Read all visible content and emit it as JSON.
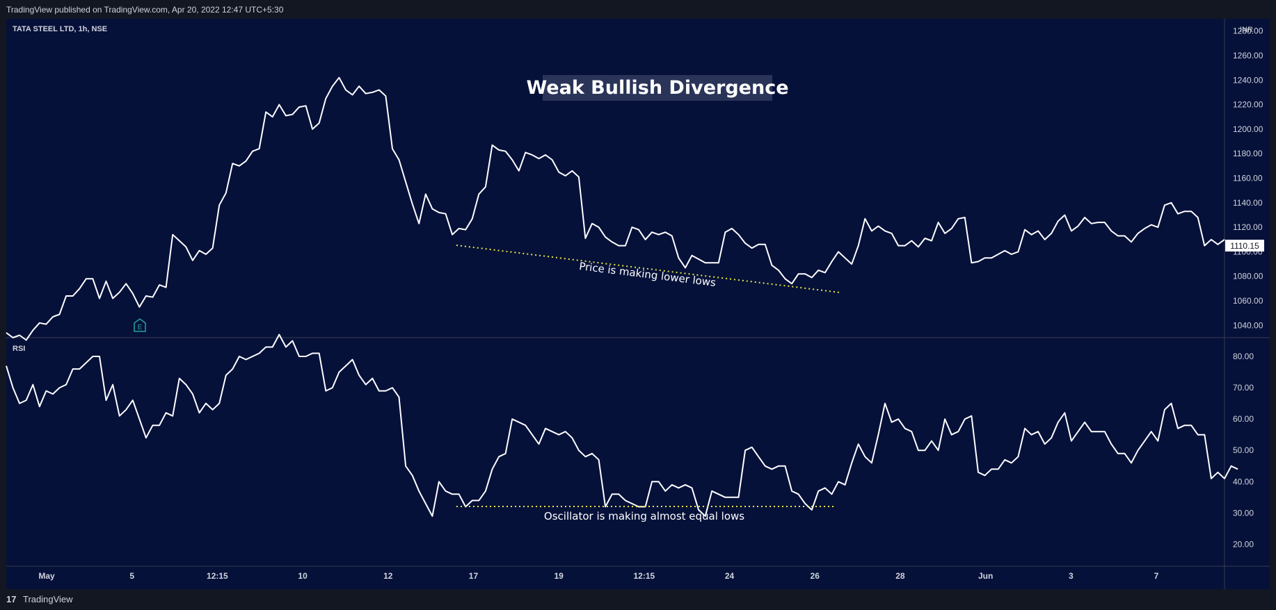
{
  "header": {
    "published_text": "TradingView published on TradingView.com, Apr 20, 2022 12:47 UTC+5:30"
  },
  "footer": {
    "logo_glyph": "17",
    "brand": "TradingView"
  },
  "colors": {
    "background": "#06113a",
    "line": "#ffffff",
    "guide": "#e8e83a",
    "axis_text": "#d1d4dc",
    "title_bg": "#2a3458"
  },
  "chart_data": [
    {
      "type": "line",
      "title": "Weak Bullish Divergence",
      "legend": "TATA STEEL LTD, 1h, NSE",
      "currency": "INR",
      "last_price_label": "1110.15",
      "last_price": 1110.15,
      "ylim": [
        1030,
        1290
      ],
      "yticks": [
        "1280.00",
        "1260.00",
        "1240.00",
        "1220.00",
        "1200.00",
        "1180.00",
        "1160.00",
        "1140.00",
        "1120.00",
        "1100.00",
        "1080.00",
        "1060.00",
        "1040.00"
      ],
      "x_tick_labels": [
        "May",
        "5",
        "12:15",
        "10",
        "12",
        "17",
        "19",
        "12:15",
        "24",
        "26",
        "28",
        "Jun",
        "3",
        "7"
      ],
      "annotation": "Price is making lower lows",
      "marker_label": "E",
      "values": [
        1034,
        1030,
        1032,
        1028,
        1036,
        1042,
        1041,
        1047,
        1049,
        1064,
        1064,
        1070,
        1078,
        1078,
        1062,
        1076,
        1062,
        1067,
        1074,
        1066,
        1055,
        1064,
        1063,
        1073,
        1071,
        1114,
        1109,
        1104,
        1093,
        1101,
        1098,
        1103,
        1138,
        1148,
        1172,
        1170,
        1174,
        1182,
        1184,
        1214,
        1210,
        1220,
        1211,
        1212,
        1218,
        1219,
        1200,
        1205,
        1225,
        1235,
        1242,
        1232,
        1228,
        1235,
        1229,
        1230,
        1232,
        1227,
        1184,
        1175,
        1157,
        1139,
        1123,
        1147,
        1135,
        1132,
        1131,
        1114,
        1119,
        1118,
        1127,
        1147,
        1153,
        1187,
        1183,
        1182,
        1175,
        1166,
        1181,
        1179,
        1176,
        1179,
        1175,
        1165,
        1162,
        1166,
        1161,
        1111,
        1123,
        1120,
        1112,
        1108,
        1105,
        1105,
        1120,
        1118,
        1110,
        1116,
        1114,
        1116,
        1113,
        1095,
        1087,
        1097,
        1094,
        1091,
        1091,
        1091,
        1116,
        1119,
        1114,
        1107,
        1103,
        1106,
        1106,
        1089,
        1085,
        1078,
        1074,
        1082,
        1082,
        1079,
        1085,
        1083,
        1092,
        1100,
        1095,
        1090,
        1105,
        1127,
        1117,
        1121,
        1117,
        1115,
        1105,
        1105,
        1109,
        1104,
        1111,
        1109,
        1124,
        1115,
        1119,
        1127,
        1128,
        1091,
        1092,
        1095,
        1095,
        1098,
        1101,
        1098,
        1100,
        1118,
        1114,
        1117,
        1110,
        1115,
        1125,
        1130,
        1117,
        1121,
        1128,
        1123,
        1124,
        1124,
        1117,
        1113,
        1113,
        1108,
        1115,
        1119,
        1122,
        1120,
        1138,
        1140,
        1131,
        1133,
        1133,
        1128,
        1105,
        1110,
        1106,
        1110
      ]
    },
    {
      "type": "line",
      "legend": "RSI",
      "ylim": [
        13,
        86
      ],
      "yticks": [
        "80.00",
        "70.00",
        "60.00",
        "50.00",
        "40.00",
        "30.00",
        "20.00"
      ],
      "annotation": "Oscillator is making almost equal lows",
      "values": [
        77,
        70,
        65,
        66,
        71,
        64,
        69,
        68,
        70,
        71,
        76,
        76,
        78,
        80,
        80,
        66,
        71,
        61,
        63,
        66,
        60,
        54,
        58,
        58,
        62,
        61,
        73,
        71,
        68,
        62,
        65,
        63,
        65,
        74,
        76,
        80,
        79,
        80,
        81,
        83,
        83,
        87,
        83,
        85,
        80,
        80,
        81,
        81,
        69,
        70,
        75,
        77,
        79,
        74,
        71,
        73,
        69,
        69,
        70,
        67,
        45,
        42,
        37,
        33,
        29,
        40,
        37,
        36,
        36,
        32,
        34,
        34,
        37,
        44,
        48,
        49,
        60,
        59,
        58,
        55,
        52,
        57,
        56,
        55,
        56,
        54,
        50,
        48,
        49,
        47,
        32,
        36,
        36,
        34,
        33,
        32,
        32,
        40,
        40,
        37,
        39,
        38,
        39,
        38,
        31,
        29,
        37,
        36,
        35,
        35,
        35,
        50,
        51,
        48,
        45,
        44,
        45,
        45,
        37,
        36,
        33,
        31,
        37,
        38,
        36,
        40,
        39,
        46,
        52,
        48,
        46,
        55,
        65,
        59,
        60,
        57,
        56,
        50,
        50,
        53,
        50,
        60,
        55,
        56,
        60,
        61,
        43,
        42,
        44,
        44,
        47,
        46,
        48,
        57,
        55,
        56,
        52,
        54,
        59,
        62,
        53,
        56,
        59,
        56,
        56,
        56,
        52,
        49,
        49,
        46,
        50,
        53,
        56,
        53,
        63,
        65,
        57,
        58,
        58,
        55,
        55,
        41,
        43,
        41,
        45,
        44
      ]
    }
  ]
}
